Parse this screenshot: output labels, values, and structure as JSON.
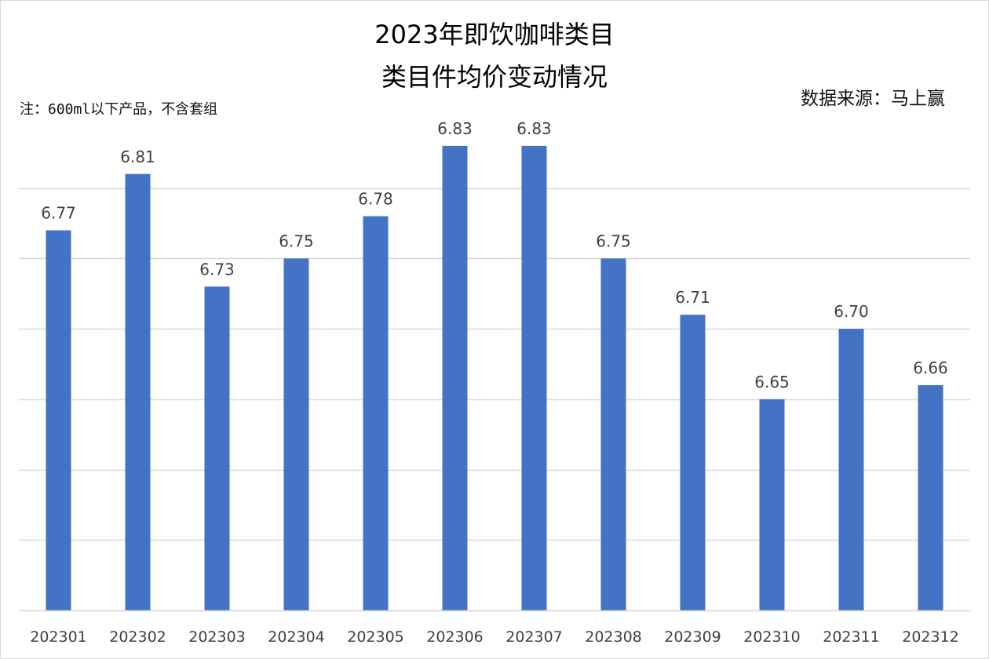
{
  "title_line1": "2023年即饮咖啡类目",
  "title_line2": "类目件均价变动情况",
  "source": "数据来源：马上赢",
  "note": "注：600ml以下产品，不含套组",
  "colors": {
    "bar": "#4472c4",
    "grid": "#d9d9d9",
    "text": "#404040"
  },
  "chart_data": {
    "type": "bar",
    "title": "2023年即饮咖啡类目 类目件均价变动情况",
    "categories": [
      "202301",
      "202302",
      "202303",
      "202304",
      "202305",
      "202306",
      "202307",
      "202308",
      "202309",
      "202310",
      "202311",
      "202312"
    ],
    "series": [
      {
        "values": [
          6.77,
          6.81,
          6.73,
          6.75,
          6.78,
          6.83,
          6.83,
          6.75,
          6.71,
          6.65,
          6.7,
          6.66
        ]
      }
    ],
    "value_labels": [
      "6.77",
      "6.81",
      "6.73",
      "6.75",
      "6.78",
      "6.83",
      "6.83",
      "6.75",
      "6.71",
      "6.65",
      "6.70",
      "6.66"
    ],
    "ylim": [
      6.5,
      6.85
    ],
    "y_gridlines": [
      6.5,
      6.55,
      6.6,
      6.65,
      6.7,
      6.75,
      6.8
    ],
    "grid": true,
    "legend": "none"
  }
}
